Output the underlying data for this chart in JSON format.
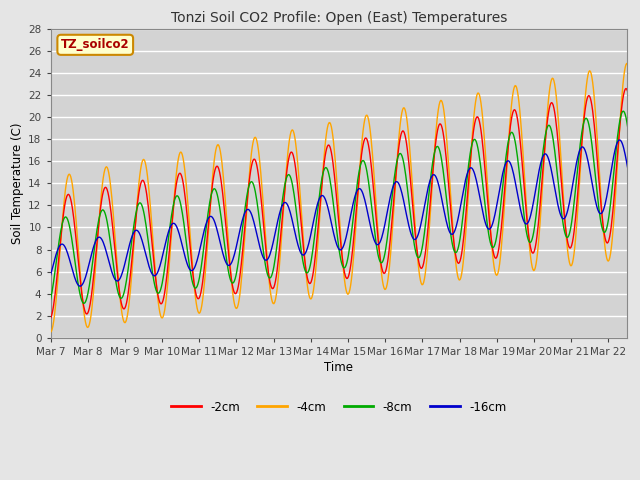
{
  "title": "Tonzi Soil CO2 Profile: Open (East) Temperatures",
  "xlabel": "Time",
  "ylabel": "Soil Temperature (C)",
  "watermark_text": "TZ_soilco2",
  "ylim": [
    0,
    28
  ],
  "yticks": [
    0,
    2,
    4,
    6,
    8,
    10,
    12,
    14,
    16,
    18,
    20,
    22,
    24,
    26,
    28
  ],
  "colors": {
    "-2cm": "#ff0000",
    "-4cm": "#ffa500",
    "-8cm": "#00aa00",
    "-16cm": "#0000cc"
  },
  "x_tick_labels": [
    "Mar 7",
    "Mar 8",
    "Mar 9",
    "Mar 10",
    "Mar 11",
    "Mar 12",
    "Mar 13",
    "Mar 14",
    "Mar 15",
    "Mar 16",
    "Mar 17",
    "Mar 18",
    "Mar 19",
    "Mar 20",
    "Mar 21",
    "Mar 22"
  ],
  "background_color": "#e5e5e5",
  "plot_bg_color": "#d3d3d3",
  "grid_color": "#ffffff",
  "legend_entries": [
    "-2cm",
    "-4cm",
    "-8cm",
    "-16cm"
  ],
  "figsize": [
    6.4,
    4.8
  ],
  "dpi": 100
}
